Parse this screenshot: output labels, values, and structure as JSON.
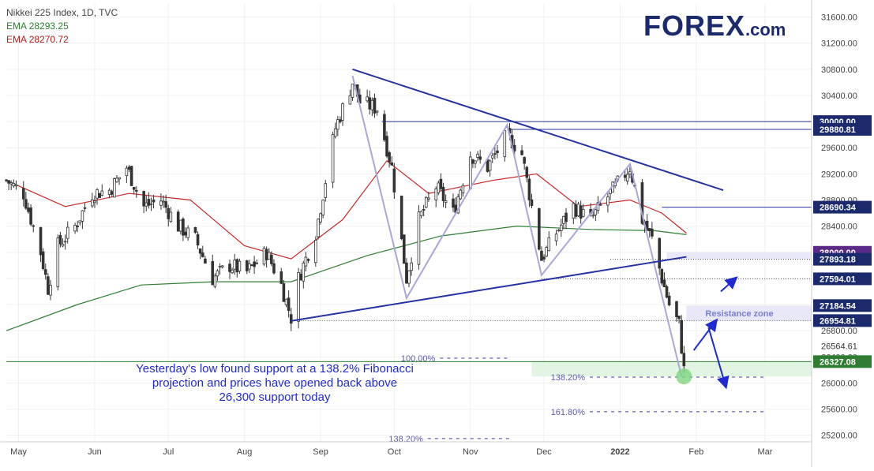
{
  "legend": {
    "title": "Nikkei 225 Index, 1D, TVC",
    "ema1_label": "EMA",
    "ema1_value": "28293.25",
    "ema2_label": "EMA",
    "ema2_value": "28270.72"
  },
  "logo": {
    "name": "FOREX",
    "suffix": ".com"
  },
  "annotation": "Yesterday's low found support at a 138.2% Fibonacci projection and prices have opened back above 26,300 support today",
  "colors": {
    "candle": "#333333",
    "ema_fast": "#c62828",
    "ema_slow": "#2e7d32",
    "trendline": "#2431a3",
    "zigzag": "#a9a6d9",
    "price_tag": "#1a2a6c",
    "support_tag": "#2e7d32",
    "highlight_tag": "#5b2a86",
    "annotation_text": "#1f2bd1"
  },
  "chart_data": {
    "type": "candlestick",
    "title": "Nikkei 225 Index, 1D, TVC",
    "x_start": "2021-04-26",
    "x_end": "2022-03-20",
    "ylim": [
      25100,
      31800
    ],
    "y_ticks": [
      "25200.00",
      "25600.00",
      "26000.00",
      "26400.00",
      "26800.00",
      "27200.00",
      "27600.00",
      "28000.00",
      "28400.00",
      "28800.00",
      "29200.00",
      "29600.00",
      "30000.00",
      "30400.00",
      "30800.00",
      "31200.00",
      "31600.00"
    ],
    "y_tick_values": [
      25200,
      25600,
      26000,
      26400,
      26800,
      27200,
      27600,
      28000,
      28400,
      28800,
      29200,
      29600,
      30000,
      30400,
      30800,
      31200,
      31600
    ],
    "x_ticks": [
      {
        "label": "May",
        "date": "2021-05-01"
      },
      {
        "label": "Jun",
        "date": "2021-06-01"
      },
      {
        "label": "Jul",
        "date": "2021-07-01"
      },
      {
        "label": "Aug",
        "date": "2021-08-01"
      },
      {
        "label": "Sep",
        "date": "2021-09-01"
      },
      {
        "label": "Oct",
        "date": "2021-10-01"
      },
      {
        "label": "Nov",
        "date": "2021-11-01"
      },
      {
        "label": "Dec",
        "date": "2021-12-01"
      },
      {
        "label": "2022",
        "date": "2022-01-01"
      },
      {
        "label": "Feb",
        "date": "2022-02-01"
      },
      {
        "label": "Mar",
        "date": "2022-03-01"
      }
    ],
    "grid": true,
    "close_path": [
      [
        "2021-04-26",
        29100
      ],
      [
        "2021-05-03",
        28900
      ],
      [
        "2021-05-10",
        28000
      ],
      [
        "2021-05-13",
        27450
      ],
      [
        "2021-05-17",
        28100
      ],
      [
        "2021-05-24",
        28400
      ],
      [
        "2021-05-31",
        28900
      ],
      [
        "2021-06-07",
        28950
      ],
      [
        "2021-06-14",
        29300
      ],
      [
        "2021-06-21",
        28700
      ],
      [
        "2021-06-28",
        28800
      ],
      [
        "2021-07-05",
        28400
      ],
      [
        "2021-07-12",
        28200
      ],
      [
        "2021-07-19",
        27600
      ],
      [
        "2021-07-26",
        27800
      ],
      [
        "2021-08-02",
        27700
      ],
      [
        "2021-08-10",
        28000
      ],
      [
        "2021-08-16",
        27500
      ],
      [
        "2021-08-20",
        27000
      ],
      [
        "2021-08-23",
        27600
      ],
      [
        "2021-08-30",
        28300
      ],
      [
        "2021-09-03",
        29100
      ],
      [
        "2021-09-07",
        29900
      ],
      [
        "2021-09-14",
        30600
      ],
      [
        "2021-09-17",
        30300
      ],
      [
        "2021-09-24",
        30200
      ],
      [
        "2021-09-30",
        29300
      ],
      [
        "2021-10-06",
        27600
      ],
      [
        "2021-10-11",
        28500
      ],
      [
        "2021-10-18",
        29000
      ],
      [
        "2021-10-25",
        28600
      ],
      [
        "2021-11-01",
        29500
      ],
      [
        "2021-11-08",
        29300
      ],
      [
        "2021-11-16",
        29800
      ],
      [
        "2021-11-22",
        29500
      ],
      [
        "2021-11-26",
        28700
      ],
      [
        "2021-11-30",
        27900
      ],
      [
        "2021-12-06",
        28300
      ],
      [
        "2021-12-13",
        28700
      ],
      [
        "2021-12-20",
        28500
      ],
      [
        "2021-12-28",
        28900
      ],
      [
        "2022-01-05",
        29300
      ],
      [
        "2022-01-10",
        28500
      ],
      [
        "2022-01-14",
        28200
      ],
      [
        "2022-01-18",
        27600
      ],
      [
        "2022-01-21",
        27200
      ],
      [
        "2022-01-25",
        26900
      ],
      [
        "2022-01-27",
        26200
      ],
      [
        "2022-01-28",
        26700
      ]
    ],
    "ema_fast_path": [
      [
        "2021-04-26",
        29100
      ],
      [
        "2021-05-20",
        28700
      ],
      [
        "2021-06-15",
        28900
      ],
      [
        "2021-07-10",
        28800
      ],
      [
        "2021-08-01",
        28100
      ],
      [
        "2021-08-20",
        27900
      ],
      [
        "2021-09-10",
        28500
      ],
      [
        "2021-09-28",
        29400
      ],
      [
        "2021-10-15",
        28900
      ],
      [
        "2021-11-10",
        29100
      ],
      [
        "2021-11-28",
        29200
      ],
      [
        "2021-12-15",
        28700
      ],
      [
        "2022-01-05",
        28800
      ],
      [
        "2022-01-18",
        28600
      ],
      [
        "2022-01-28",
        28293
      ]
    ],
    "ema_slow_path": [
      [
        "2021-04-26",
        26800
      ],
      [
        "2021-05-25",
        27200
      ],
      [
        "2021-06-20",
        27500
      ],
      [
        "2021-07-20",
        27550
      ],
      [
        "2021-08-20",
        27550
      ],
      [
        "2021-09-20",
        27950
      ],
      [
        "2021-10-20",
        28250
      ],
      [
        "2021-11-20",
        28400
      ],
      [
        "2021-12-20",
        28350
      ],
      [
        "2022-01-15",
        28330
      ],
      [
        "2022-01-28",
        28270
      ]
    ],
    "trendlines": [
      {
        "from": [
          "2021-09-14",
          30800
        ],
        "to": [
          "2022-02-12",
          28950
        ]
      },
      {
        "from": [
          "2021-08-20",
          26950
        ],
        "to": [
          "2022-01-28",
          27930
        ]
      }
    ],
    "zigzag": [
      [
        "2021-09-14",
        30700
      ],
      [
        "2021-10-06",
        27300
      ],
      [
        "2021-11-16",
        29950
      ],
      [
        "2021-11-30",
        27650
      ],
      [
        "2022-01-05",
        29350
      ],
      [
        "2022-01-26",
        26100
      ]
    ],
    "levels": [
      {
        "value": 30000.0,
        "label": "30000.00",
        "from": "2021-09-26",
        "style": "solid",
        "tag": "price_tag"
      },
      {
        "value": 29880.81,
        "label": "29880.81",
        "from": "2021-11-16",
        "style": "solid",
        "tag": "price_tag"
      },
      {
        "value": 28690.34,
        "label": "28690.34",
        "from": "2022-01-18",
        "style": "solid",
        "tag": "price_tag"
      },
      {
        "value": 28000.0,
        "label": "28000.00",
        "from": "2022-01-20",
        "style": "none",
        "tag": "highlight_tag"
      },
      {
        "value": 27893.18,
        "label": "27893.18",
        "from": "2021-12-28",
        "style": "dotted",
        "tag": "price_tag"
      },
      {
        "value": 27594.01,
        "label": "27594.01",
        "from": "2021-11-30",
        "style": "dotted",
        "tag": "price_tag"
      },
      {
        "value": 27184.54,
        "label": "27184.54",
        "from": "2022-01-28",
        "style": "none",
        "tag": "price_tag"
      },
      {
        "value": 26954.81,
        "label": "26954.81",
        "from": "2021-08-20",
        "style": "dotted",
        "tag": "price_tag"
      },
      {
        "value": 26564.61,
        "label": "26564.61",
        "from": "2022-01-28",
        "style": "none",
        "tag": "plain"
      },
      {
        "value": 26327.08,
        "label": "26327.08",
        "from": "2021-04-26",
        "style": "solid-green",
        "tag": "support_tag"
      }
    ],
    "zones": [
      {
        "label": "Resistance zone",
        "from": "2022-01-28",
        "y1": 26954.81,
        "y2": 27184.54
      },
      {
        "label": "",
        "from": "2022-01-20",
        "y1": 27893.18,
        "y2": 28000.0
      },
      {
        "label": "",
        "from": "2021-11-26",
        "y1": 26100,
        "y2": 26327.08
      }
    ],
    "fib_levels": [
      {
        "label": "100.00%",
        "value": 26380,
        "from": "2021-10-01",
        "to": "2021-11-17"
      },
      {
        "label": "138.20%",
        "value": 26090,
        "from": "2021-12-01",
        "to": "2022-03-01"
      },
      {
        "label": "161.80%",
        "value": 25560,
        "from": "2021-12-01",
        "to": "2022-03-01"
      },
      {
        "label": "138.20%",
        "value": 25150,
        "from": "2021-09-26",
        "to": "2021-11-17"
      }
    ],
    "arrows": [
      {
        "from": [
          "2022-01-31",
          26500
        ],
        "to": [
          "2022-02-09",
          26950
        ]
      },
      {
        "from": [
          "2022-02-11",
          27400
        ],
        "to": [
          "2022-02-17",
          27600
        ]
      },
      {
        "from": [
          "2022-02-06",
          26850
        ],
        "to": [
          "2022-02-13",
          25950
        ]
      }
    ],
    "marker": {
      "date": "2022-01-27",
      "value": 26100
    }
  }
}
